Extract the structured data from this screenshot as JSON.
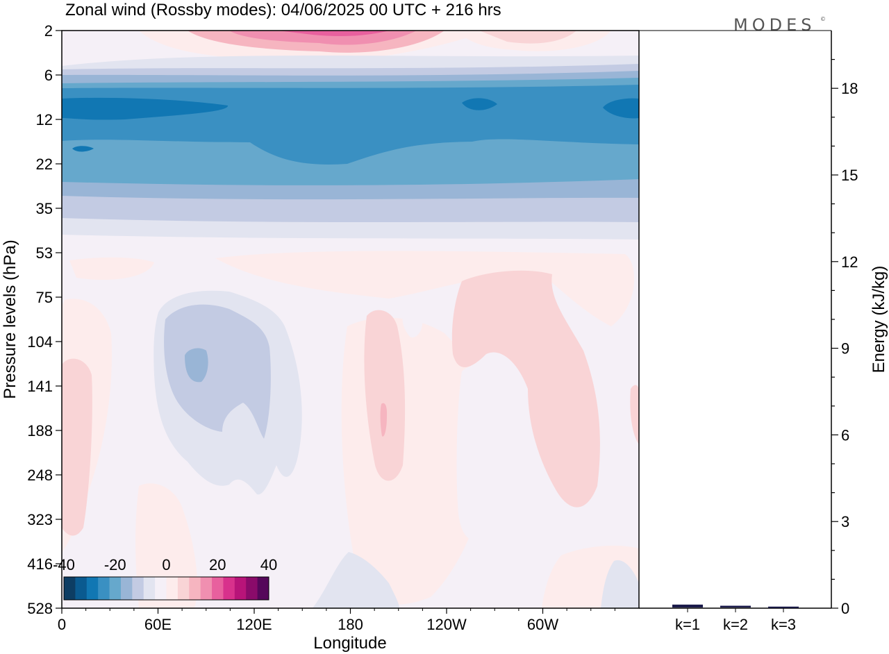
{
  "chart_data": [
    {
      "type": "heatmap",
      "title": "Zonal wind (Rossby modes):  04/06/2025  00 UTC  + 216 hrs",
      "xlabel": "Longitude",
      "ylabel": "Pressure levels (hPa)",
      "x_ticks": [
        "0",
        "60E",
        "120E",
        "180",
        "120W",
        "60W"
      ],
      "y_ticks": [
        "2",
        "6",
        "12",
        "22",
        "35",
        "53",
        "75",
        "104",
        "141",
        "188",
        "248",
        "323",
        "416",
        "528"
      ],
      "colorbar": {
        "tick_labels": [
          "-40",
          "-20",
          "0",
          "20",
          "40"
        ],
        "range": [
          -40,
          40
        ],
        "colors": [
          "#0d3d63",
          "#0a5a90",
          "#1177b3",
          "#3a90c2",
          "#66a8cc",
          "#99b5d6",
          "#c3cbe3",
          "#e2e4f0",
          "#f5f0f7",
          "#fdecec",
          "#f9d4d6",
          "#f6b5c0",
          "#f08fb0",
          "#e8609e",
          "#d8318c",
          "#b81479",
          "#8a0b6a",
          "#55075a"
        ]
      },
      "field_summary": [
        {
          "feature": "easterly jet",
          "pressure_hPa": "8-25",
          "value_ms": -30
        },
        {
          "feature": "easterly core",
          "pressure_hPa": "9-13",
          "value_ms": -35
        },
        {
          "feature": "westerly maximum",
          "pressure_hPa": "2",
          "value_ms": 20
        },
        {
          "feature": "weak easterly anomaly",
          "longitude": "60E-130E",
          "pressure_hPa": "80-250",
          "value_ms": -10
        }
      ]
    },
    {
      "type": "bar",
      "categories": [
        "k=1",
        "k=2",
        "k=3"
      ],
      "values": [
        0.1,
        0.06,
        0.03
      ],
      "ylabel": "Energy (kJ/kg)",
      "ylim": [
        0,
        20
      ],
      "y_ticks": [
        "0",
        "3",
        "6",
        "9",
        "12",
        "15",
        "18"
      ],
      "bar_color": "#1a1a4a"
    }
  ],
  "logo": {
    "text": "MODES",
    "mark": "©"
  }
}
